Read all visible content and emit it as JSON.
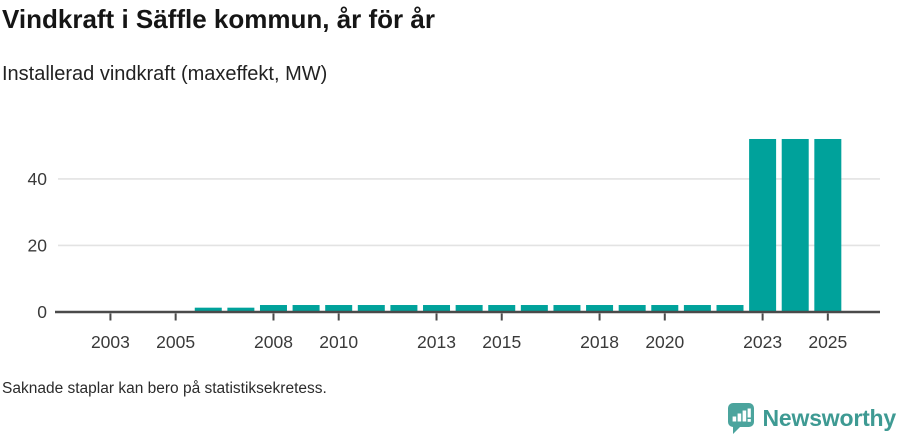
{
  "header": {
    "title": "Vindkraft i Säffle kommun, år för år",
    "subtitle": "Installerad vindkraft (maxeffekt, MW)"
  },
  "footer": {
    "note": "Saknade staplar kan bero på statistiksekretess.",
    "brand": "Newsworthy"
  },
  "chart_data": {
    "type": "bar",
    "title": "Vindkraft i Säffle kommun, år för år",
    "subtitle": "Installerad vindkraft (maxeffekt, MW)",
    "xlabel": "",
    "ylabel": "MW",
    "x": [
      2006,
      2007,
      2008,
      2009,
      2010,
      2011,
      2012,
      2013,
      2014,
      2015,
      2016,
      2017,
      2018,
      2019,
      2020,
      2021,
      2022,
      2023,
      2024,
      2025
    ],
    "values": [
      1.3,
      1.3,
      2.1,
      2.1,
      2.1,
      2.1,
      2.1,
      2.1,
      2.1,
      2.1,
      2.1,
      2.1,
      2.1,
      2.1,
      2.1,
      2.1,
      2.1,
      52,
      52,
      52
    ],
    "missing_years": [
      2001,
      2002,
      2003,
      2004,
      2005
    ],
    "x_ticks": [
      2003,
      2005,
      2008,
      2010,
      2013,
      2015,
      2018,
      2020,
      2023,
      2025
    ],
    "y_ticks": [
      0,
      20,
      40
    ],
    "x_range": [
      2001.3,
      2026.6
    ],
    "ylim": [
      0,
      53.2
    ],
    "grid": "horizontal",
    "legend": "none",
    "colors": {
      "bar": "#00a29b",
      "axis": "#4a4a4a",
      "grid": "#e3e3e3",
      "tick_label": "#3a3a3a"
    }
  },
  "logo": {
    "icon": "newsworthy-speech-bubble-bar-chart",
    "icon_fill": "#4ba49d",
    "icon_glyph_color": "#ffffff",
    "wordmark_color": "#3e9a93"
  }
}
